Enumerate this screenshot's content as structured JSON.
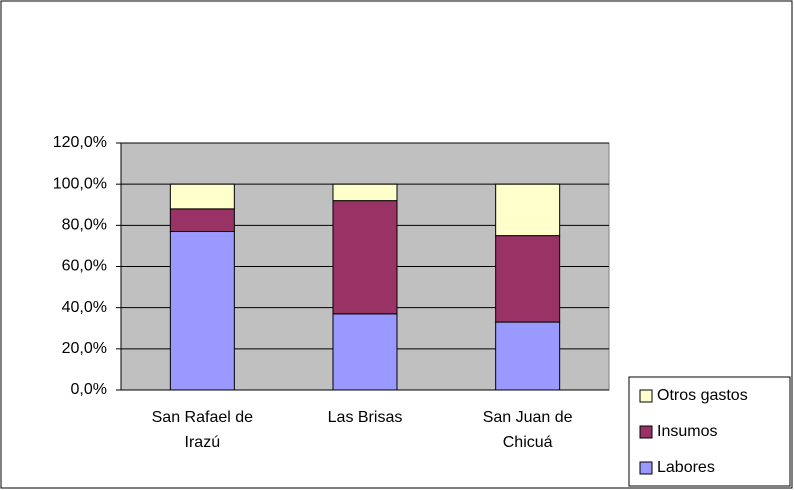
{
  "chart_data": {
    "type": "stacked_bar",
    "categories": [
      "San Rafael de Irazú",
      "Las Brisas",
      "San Juan de Chicuá"
    ],
    "series": [
      {
        "name": "Labores",
        "color": "#9999ff",
        "values": [
          77,
          37,
          33
        ]
      },
      {
        "name": "Insumos",
        "color": "#993366",
        "values": [
          11,
          55,
          42
        ]
      },
      {
        "name": "Otros gastos",
        "color": "#ffffcc",
        "values": [
          12,
          8,
          25
        ]
      }
    ],
    "ylim": [
      0,
      120
    ],
    "yticks": [
      {
        "value": 0,
        "label": "0,0%"
      },
      {
        "value": 20,
        "label": "20,0%"
      },
      {
        "value": 40,
        "label": "40,0%"
      },
      {
        "value": 60,
        "label": "60,0%"
      },
      {
        "value": 80,
        "label": "80,0%"
      },
      {
        "value": 100,
        "label": "100,0%"
      },
      {
        "value": 120,
        "label": "120,0%"
      }
    ],
    "grid": true,
    "plot_background": "#c0c0c0",
    "legend": "lower right"
  }
}
